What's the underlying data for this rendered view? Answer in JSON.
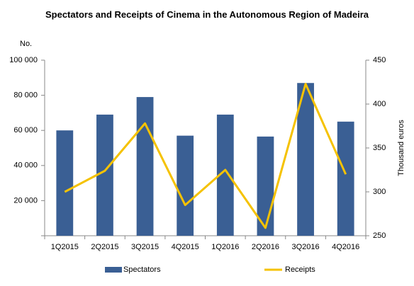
{
  "chart_data": {
    "type": "bar_line",
    "title": "Spectators and Receipts of Cinema in the Autonomous Region of Madeira",
    "y_label": "No.",
    "y2_label": "Thousand euros",
    "categories": [
      "1Q2015",
      "2Q2015",
      "3Q2015",
      "4Q2015",
      "1Q2016",
      "2Q2016",
      "3Q2016",
      "4Q2016"
    ],
    "series": [
      {
        "name": "Spectators",
        "type": "bar",
        "color": "#3a5f94",
        "values": [
          60000,
          69000,
          79000,
          57000,
          69000,
          56500,
          87000,
          65000
        ]
      },
      {
        "name": "Receipts",
        "type": "line",
        "axis": "y2",
        "color": "#f5c200",
        "values": [
          300,
          324,
          378,
          285,
          325,
          259,
          423,
          320
        ]
      }
    ],
    "ylim": [
      0,
      100000
    ],
    "yticks": [
      {
        "value": 20000,
        "label": "20 000"
      },
      {
        "value": 40000,
        "label": "40 000"
      },
      {
        "value": 60000,
        "label": "60 000"
      },
      {
        "value": 80000,
        "label": "80 000"
      },
      {
        "value": 100000,
        "label": "100 000"
      }
    ],
    "y2lim": [
      250,
      450
    ],
    "y2ticks": [
      250,
      300,
      350,
      400,
      450
    ]
  }
}
